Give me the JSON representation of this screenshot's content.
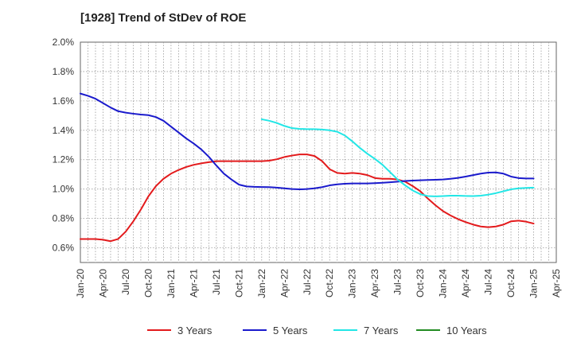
{
  "chart_data": {
    "type": "line",
    "title": "[1928]  Trend of StDev of ROE",
    "xlabel": "",
    "ylabel": "",
    "x_ticks": [
      "Jan-20",
      "Apr-20",
      "Jul-20",
      "Oct-20",
      "Jan-21",
      "Apr-21",
      "Jul-21",
      "Oct-21",
      "Jan-22",
      "Apr-22",
      "Jul-22",
      "Oct-22",
      "Jan-23",
      "Apr-23",
      "Jul-23",
      "Oct-23",
      "Jan-24",
      "Apr-24",
      "Jul-24",
      "Oct-24",
      "Jan-25",
      "Apr-25"
    ],
    "y_ticks": [
      "0.6%",
      "0.8%",
      "1.0%",
      "1.2%",
      "1.4%",
      "1.6%",
      "1.8%",
      "2.0%"
    ],
    "ylim": [
      0.5,
      2.0
    ],
    "grid": true,
    "legend_position": "bottom",
    "series": [
      {
        "name": "3 Years",
        "color": "#e31a1c",
        "points": [
          [
            "Jan-20",
            0.66
          ],
          [
            "Feb-20",
            0.66
          ],
          [
            "Mar-20",
            0.66
          ],
          [
            "Apr-20",
            0.655
          ],
          [
            "May-20",
            0.645
          ],
          [
            "Jun-20",
            0.66
          ],
          [
            "Jul-20",
            0.71
          ],
          [
            "Aug-20",
            0.78
          ],
          [
            "Sep-20",
            0.86
          ],
          [
            "Oct-20",
            0.95
          ],
          [
            "Nov-20",
            1.02
          ],
          [
            "Dec-20",
            1.07
          ],
          [
            "Jan-21",
            1.105
          ],
          [
            "Feb-21",
            1.13
          ],
          [
            "Mar-21",
            1.15
          ],
          [
            "Apr-21",
            1.165
          ],
          [
            "May-21",
            1.175
          ],
          [
            "Jun-21",
            1.183
          ],
          [
            "Jul-21",
            1.19
          ],
          [
            "Aug-21",
            1.19
          ],
          [
            "Sep-21",
            1.19
          ],
          [
            "Oct-21",
            1.19
          ],
          [
            "Nov-21",
            1.19
          ],
          [
            "Dec-21",
            1.19
          ],
          [
            "Jan-22",
            1.19
          ],
          [
            "Feb-22",
            1.193
          ],
          [
            "Mar-22",
            1.203
          ],
          [
            "Apr-22",
            1.218
          ],
          [
            "May-22",
            1.228
          ],
          [
            "Jun-22",
            1.236
          ],
          [
            "Jul-22",
            1.236
          ],
          [
            "Aug-22",
            1.225
          ],
          [
            "Sep-22",
            1.19
          ],
          [
            "Oct-22",
            1.135
          ],
          [
            "Nov-22",
            1.11
          ],
          [
            "Dec-22",
            1.105
          ],
          [
            "Jan-23",
            1.11
          ],
          [
            "Feb-23",
            1.105
          ],
          [
            "Mar-23",
            1.095
          ],
          [
            "Apr-23",
            1.075
          ],
          [
            "May-23",
            1.07
          ],
          [
            "Jun-23",
            1.07
          ],
          [
            "Jul-23",
            1.065
          ],
          [
            "Aug-23",
            1.05
          ],
          [
            "Sep-23",
            1.02
          ],
          [
            "Oct-23",
            0.985
          ],
          [
            "Nov-23",
            0.935
          ],
          [
            "Dec-23",
            0.89
          ],
          [
            "Jan-24",
            0.85
          ],
          [
            "Feb-24",
            0.82
          ],
          [
            "Mar-24",
            0.795
          ],
          [
            "Apr-24",
            0.775
          ],
          [
            "May-24",
            0.758
          ],
          [
            "Jun-24",
            0.745
          ],
          [
            "Jul-24",
            0.74
          ],
          [
            "Aug-24",
            0.745
          ],
          [
            "Sep-24",
            0.758
          ],
          [
            "Oct-24",
            0.78
          ],
          [
            "Nov-24",
            0.785
          ],
          [
            "Dec-24",
            0.778
          ],
          [
            "Jan-25",
            0.765
          ]
        ]
      },
      {
        "name": "5 Years",
        "color": "#1a1acc",
        "points": [
          [
            "Jan-20",
            1.65
          ],
          [
            "Feb-20",
            1.635
          ],
          [
            "Mar-20",
            1.615
          ],
          [
            "Apr-20",
            1.585
          ],
          [
            "May-20",
            1.555
          ],
          [
            "Jun-20",
            1.53
          ],
          [
            "Jul-20",
            1.52
          ],
          [
            "Aug-20",
            1.513
          ],
          [
            "Sep-20",
            1.507
          ],
          [
            "Oct-20",
            1.503
          ],
          [
            "Nov-20",
            1.49
          ],
          [
            "Dec-20",
            1.465
          ],
          [
            "Jan-21",
            1.425
          ],
          [
            "Feb-21",
            1.385
          ],
          [
            "Mar-21",
            1.345
          ],
          [
            "Apr-21",
            1.31
          ],
          [
            "May-21",
            1.27
          ],
          [
            "Jun-21",
            1.22
          ],
          [
            "Jul-21",
            1.16
          ],
          [
            "Aug-21",
            1.105
          ],
          [
            "Sep-21",
            1.065
          ],
          [
            "Oct-21",
            1.03
          ],
          [
            "Nov-21",
            1.018
          ],
          [
            "Dec-21",
            1.015
          ],
          [
            "Jan-22",
            1.014
          ],
          [
            "Feb-22",
            1.013
          ],
          [
            "Mar-22",
            1.01
          ],
          [
            "Apr-22",
            1.005
          ],
          [
            "May-22",
            1.0
          ],
          [
            "Jun-22",
            0.998
          ],
          [
            "Jul-22",
            1.0
          ],
          [
            "Aug-22",
            1.005
          ],
          [
            "Sep-22",
            1.013
          ],
          [
            "Oct-22",
            1.025
          ],
          [
            "Nov-22",
            1.032
          ],
          [
            "Dec-22",
            1.036
          ],
          [
            "Jan-23",
            1.038
          ],
          [
            "Feb-23",
            1.038
          ],
          [
            "Mar-23",
            1.038
          ],
          [
            "Apr-23",
            1.04
          ],
          [
            "May-23",
            1.043
          ],
          [
            "Jun-23",
            1.046
          ],
          [
            "Jul-23",
            1.05
          ],
          [
            "Aug-23",
            1.055
          ],
          [
            "Sep-23",
            1.058
          ],
          [
            "Oct-23",
            1.06
          ],
          [
            "Nov-23",
            1.062
          ],
          [
            "Dec-23",
            1.063
          ],
          [
            "Jan-24",
            1.065
          ],
          [
            "Feb-24",
            1.07
          ],
          [
            "Mar-24",
            1.076
          ],
          [
            "Apr-24",
            1.085
          ],
          [
            "May-24",
            1.095
          ],
          [
            "Jun-24",
            1.105
          ],
          [
            "Jul-24",
            1.112
          ],
          [
            "Aug-24",
            1.113
          ],
          [
            "Sep-24",
            1.105
          ],
          [
            "Oct-24",
            1.085
          ],
          [
            "Nov-24",
            1.075
          ],
          [
            "Dec-24",
            1.072
          ],
          [
            "Jan-25",
            1.072
          ]
        ]
      },
      {
        "name": "7 Years",
        "color": "#22e6e6",
        "points": [
          [
            "Jan-22",
            1.475
          ],
          [
            "Feb-22",
            1.465
          ],
          [
            "Mar-22",
            1.45
          ],
          [
            "Apr-22",
            1.43
          ],
          [
            "May-22",
            1.415
          ],
          [
            "Jun-22",
            1.41
          ],
          [
            "Jul-22",
            1.408
          ],
          [
            "Aug-22",
            1.408
          ],
          [
            "Sep-22",
            1.405
          ],
          [
            "Oct-22",
            1.4
          ],
          [
            "Nov-22",
            1.39
          ],
          [
            "Dec-22",
            1.365
          ],
          [
            "Jan-23",
            1.325
          ],
          [
            "Feb-23",
            1.28
          ],
          [
            "Mar-23",
            1.24
          ],
          [
            "Apr-23",
            1.205
          ],
          [
            "May-23",
            1.165
          ],
          [
            "Jun-23",
            1.115
          ],
          [
            "Jul-23",
            1.065
          ],
          [
            "Aug-23",
            1.025
          ],
          [
            "Sep-23",
            0.99
          ],
          [
            "Oct-23",
            0.965
          ],
          [
            "Nov-23",
            0.952
          ],
          [
            "Dec-23",
            0.95
          ],
          [
            "Jan-24",
            0.952
          ],
          [
            "Feb-24",
            0.955
          ],
          [
            "Mar-24",
            0.955
          ],
          [
            "Apr-24",
            0.953
          ],
          [
            "May-24",
            0.952
          ],
          [
            "Jun-24",
            0.955
          ],
          [
            "Jul-24",
            0.962
          ],
          [
            "Aug-24",
            0.972
          ],
          [
            "Sep-24",
            0.985
          ],
          [
            "Oct-24",
            0.998
          ],
          [
            "Nov-24",
            1.005
          ],
          [
            "Dec-24",
            1.008
          ],
          [
            "Jan-25",
            1.01
          ]
        ]
      },
      {
        "name": "10 Years",
        "color": "#228b22",
        "points": []
      }
    ]
  }
}
